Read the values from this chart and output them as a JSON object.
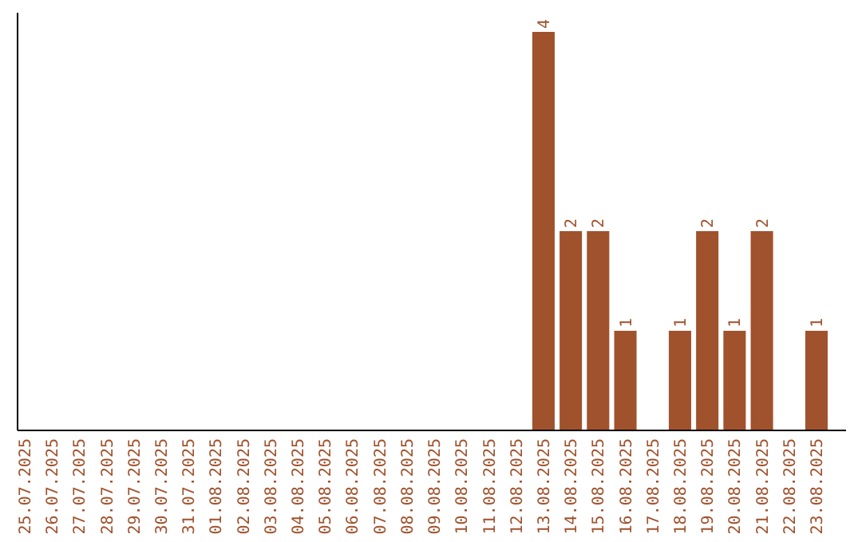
{
  "chart_data": {
    "type": "bar",
    "categories": [
      "25.07.2025",
      "26.07.2025",
      "27.07.2025",
      "28.07.2025",
      "29.07.2025",
      "30.07.2025",
      "31.07.2025",
      "01.08.2025",
      "02.08.2025",
      "03.08.2025",
      "04.08.2025",
      "05.08.2025",
      "06.08.2025",
      "07.08.2025",
      "08.08.2025",
      "09.08.2025",
      "10.08.2025",
      "11.08.2025",
      "12.08.2025",
      "13.08.2025",
      "14.08.2025",
      "15.08.2025",
      "16.08.2025",
      "17.08.2025",
      "18.08.2025",
      "19.08.2025",
      "20.08.2025",
      "21.08.2025",
      "22.08.2025",
      "23.08.2025"
    ],
    "values": [
      null,
      null,
      null,
      null,
      null,
      null,
      null,
      null,
      null,
      null,
      null,
      null,
      null,
      null,
      null,
      null,
      null,
      null,
      null,
      4,
      2,
      2,
      1,
      null,
      1,
      2,
      1,
      2,
      null,
      1
    ],
    "data_labels": true,
    "color": "#a0522d",
    "tick_labels": "x"
  }
}
